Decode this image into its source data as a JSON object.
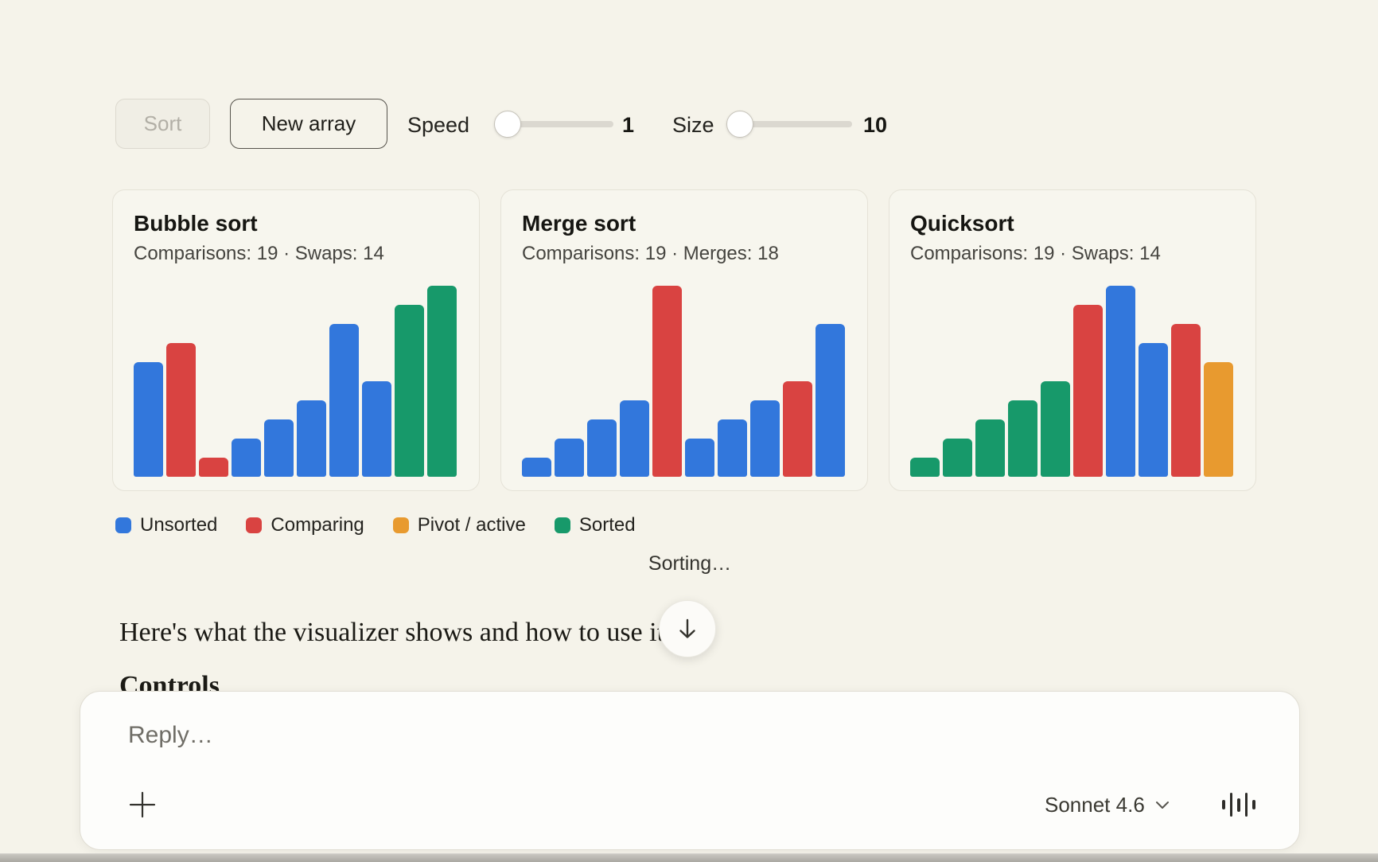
{
  "colors": {
    "unsorted": "#3277dc",
    "comparing": "#d94341",
    "pivot": "#e89a2f",
    "sorted": "#17996a"
  },
  "controls": {
    "sort_label": "Sort",
    "new_array_label": "New array",
    "speed_label": "Speed",
    "speed_value": "1",
    "size_label": "Size",
    "size_value": "10"
  },
  "panels": [
    {
      "title": "Bubble sort",
      "stats": "Comparisons: 19 · Swaps: 14",
      "bars": [
        {
          "value": 6,
          "state": "unsorted"
        },
        {
          "value": 7,
          "state": "comparing"
        },
        {
          "value": 1,
          "state": "comparing"
        },
        {
          "value": 2,
          "state": "unsorted"
        },
        {
          "value": 3,
          "state": "unsorted"
        },
        {
          "value": 4,
          "state": "unsorted"
        },
        {
          "value": 8,
          "state": "unsorted"
        },
        {
          "value": 5,
          "state": "unsorted"
        },
        {
          "value": 9,
          "state": "sorted"
        },
        {
          "value": 10,
          "state": "sorted"
        }
      ]
    },
    {
      "title": "Merge sort",
      "stats": "Comparisons: 19 · Merges: 18",
      "bars": [
        {
          "value": 1,
          "state": "unsorted"
        },
        {
          "value": 2,
          "state": "unsorted"
        },
        {
          "value": 3,
          "state": "unsorted"
        },
        {
          "value": 4,
          "state": "unsorted"
        },
        {
          "value": 10,
          "state": "comparing"
        },
        {
          "value": 2,
          "state": "unsorted"
        },
        {
          "value": 3,
          "state": "unsorted"
        },
        {
          "value": 4,
          "state": "unsorted"
        },
        {
          "value": 5,
          "state": "comparing"
        },
        {
          "value": 8,
          "state": "unsorted"
        }
      ]
    },
    {
      "title": "Quicksort",
      "stats": "Comparisons: 19 · Swaps: 14",
      "bars": [
        {
          "value": 1,
          "state": "sorted"
        },
        {
          "value": 2,
          "state": "sorted"
        },
        {
          "value": 3,
          "state": "sorted"
        },
        {
          "value": 4,
          "state": "sorted"
        },
        {
          "value": 5,
          "state": "sorted"
        },
        {
          "value": 9,
          "state": "comparing"
        },
        {
          "value": 10,
          "state": "unsorted"
        },
        {
          "value": 7,
          "state": "unsorted"
        },
        {
          "value": 8,
          "state": "comparing"
        },
        {
          "value": 6,
          "state": "pivot"
        }
      ]
    }
  ],
  "legend": [
    {
      "label": "Unsorted",
      "state": "unsorted"
    },
    {
      "label": "Comparing",
      "state": "comparing"
    },
    {
      "label": "Pivot / active",
      "state": "pivot"
    },
    {
      "label": "Sorted",
      "state": "sorted"
    }
  ],
  "status_text": "Sorting…",
  "article": {
    "paragraph": "Here's what the visualizer shows and how to use it:",
    "heading_partial": "Controls"
  },
  "composer": {
    "placeholder": "Reply…",
    "model_label": "Sonnet 4.6"
  },
  "chart_data": [
    {
      "type": "bar",
      "title": "Bubble sort",
      "subtitle": "Comparisons: 19 · Swaps: 14",
      "values": [
        6,
        7,
        1,
        2,
        3,
        4,
        8,
        5,
        9,
        10
      ],
      "states": [
        "unsorted",
        "comparing",
        "comparing",
        "unsorted",
        "unsorted",
        "unsorted",
        "unsorted",
        "unsorted",
        "sorted",
        "sorted"
      ],
      "ylim": [
        0,
        10
      ],
      "grid": false
    },
    {
      "type": "bar",
      "title": "Merge sort",
      "subtitle": "Comparisons: 19 · Merges: 18",
      "values": [
        1,
        2,
        3,
        4,
        10,
        2,
        3,
        4,
        5,
        8
      ],
      "states": [
        "unsorted",
        "unsorted",
        "unsorted",
        "unsorted",
        "comparing",
        "unsorted",
        "unsorted",
        "unsorted",
        "comparing",
        "unsorted"
      ],
      "ylim": [
        0,
        10
      ],
      "grid": false
    },
    {
      "type": "bar",
      "title": "Quicksort",
      "subtitle": "Comparisons: 19 · Swaps: 14",
      "values": [
        1,
        2,
        3,
        4,
        5,
        9,
        10,
        7,
        8,
        6
      ],
      "states": [
        "sorted",
        "sorted",
        "sorted",
        "sorted",
        "sorted",
        "comparing",
        "unsorted",
        "unsorted",
        "comparing",
        "pivot"
      ],
      "ylim": [
        0,
        10
      ],
      "grid": false
    }
  ]
}
